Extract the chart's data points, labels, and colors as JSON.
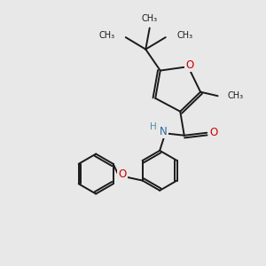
{
  "bg_color": "#e8e8e8",
  "bond_color": "#1a1a1a",
  "oxygen_color": "#cc0000",
  "nitrogen_color": "#336699",
  "lw": 1.4,
  "xlim": [
    0,
    10
  ],
  "ylim": [
    0,
    10
  ]
}
